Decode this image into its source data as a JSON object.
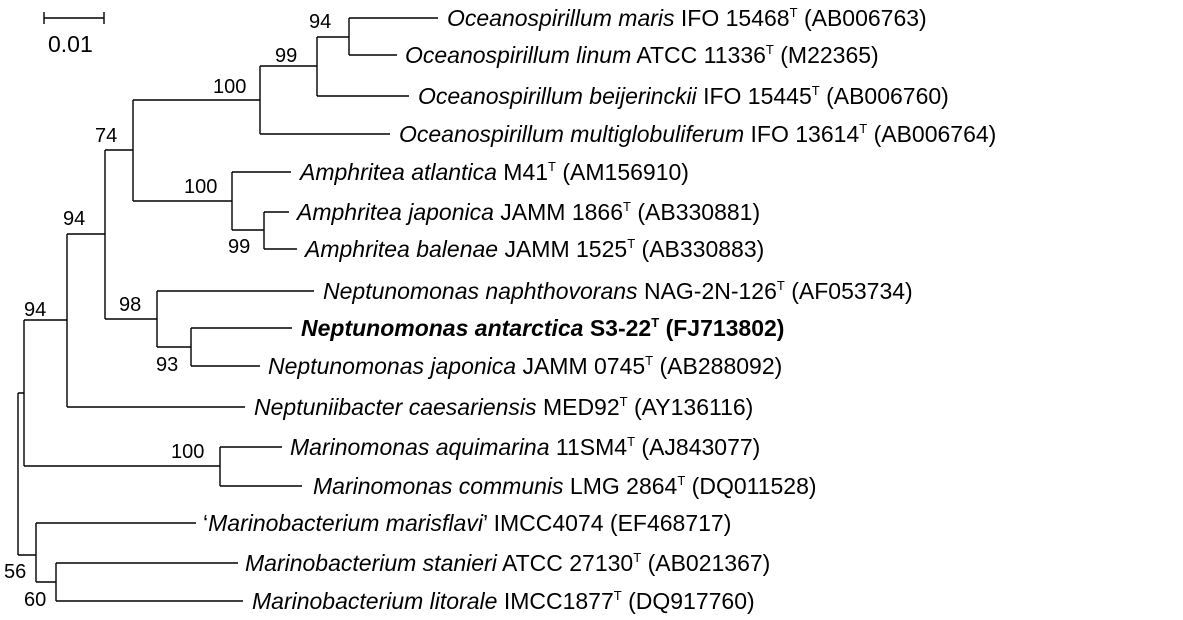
{
  "scale_bar": {
    "label": "0.01"
  },
  "taxa": [
    {
      "id": "t1",
      "prefix": "",
      "species": "Oceanospirillum maris",
      "strain": "IFO 15468",
      "type_strain": true,
      "accession": "(AB006763)",
      "bold": false
    },
    {
      "id": "t2",
      "prefix": "",
      "species": "Oceanospirillum linum",
      "strain": "ATCC 11336",
      "type_strain": true,
      "accession": "(M22365)",
      "bold": false
    },
    {
      "id": "t3",
      "prefix": "",
      "species": "Oceanospirillum beijerinckii",
      "strain": "IFO 15445",
      "type_strain": true,
      "accession": "(AB006760)",
      "bold": false
    },
    {
      "id": "t4",
      "prefix": "",
      "species": "Oceanospirillum multiglobuliferum",
      "strain": "IFO 13614",
      "type_strain": true,
      "accession": "(AB006764)",
      "bold": false
    },
    {
      "id": "t5",
      "prefix": "",
      "species": "Amphritea atlantica",
      "strain": "M41",
      "type_strain": true,
      "accession": "(AM156910)",
      "bold": false
    },
    {
      "id": "t6",
      "prefix": "",
      "species": "Amphritea japonica",
      "strain": "JAMM 1866",
      "type_strain": true,
      "accession": "(AB330881)",
      "bold": false
    },
    {
      "id": "t7",
      "prefix": "",
      "species": "Amphritea balenae",
      "strain": "JAMM 1525",
      "type_strain": true,
      "accession": "(AB330883)",
      "bold": false
    },
    {
      "id": "t8",
      "prefix": "",
      "species": "Neptunomonas naphthovorans",
      "strain": "NAG-2N-126",
      "type_strain": true,
      "accession": "(AF053734)",
      "bold": false
    },
    {
      "id": "t9",
      "prefix": "",
      "species": "Neptunomonas antarctica",
      "strain": "S3-22",
      "type_strain": true,
      "accession": "(FJ713802)",
      "bold": true
    },
    {
      "id": "t10",
      "prefix": "",
      "species": "Neptunomonas japonica",
      "strain": "JAMM 0745",
      "type_strain": true,
      "accession": "(AB288092)",
      "bold": false
    },
    {
      "id": "t11",
      "prefix": "",
      "species": "Neptuniibacter caesariensis",
      "strain": "MED92",
      "type_strain": true,
      "accession": "(AY136116)",
      "bold": false
    },
    {
      "id": "t12",
      "prefix": "",
      "species": "Marinomonas aquimarina",
      "strain": "11SM4",
      "type_strain": true,
      "accession": "(AJ843077)",
      "bold": false
    },
    {
      "id": "t13",
      "prefix": "",
      "species": "Marinomonas communis",
      "strain": "LMG 2864",
      "type_strain": true,
      "accession": "(DQ011528)",
      "bold": false
    },
    {
      "id": "t14",
      "prefix": "‘",
      "species": "Marinobacterium marisflavi",
      "suffix": "’",
      "strain": "IMCC4074",
      "type_strain": false,
      "accession": "(EF468717)",
      "bold": false
    },
    {
      "id": "t15",
      "prefix": "",
      "species": "Marinobacterium stanieri",
      "strain": "ATCC 27130",
      "type_strain": true,
      "accession": "(AB021367)",
      "bold": false
    },
    {
      "id": "t16",
      "prefix": "",
      "species": "Marinobacterium litorale",
      "strain": "IMCC1877",
      "type_strain": true,
      "accession": "(DQ917760)",
      "bold": false
    }
  ],
  "type_strain_mark": "T",
  "bootstrap": [
    {
      "node": "maris-linum",
      "value": "94"
    },
    {
      "node": "oceanospirillum-core",
      "value": "99"
    },
    {
      "node": "oceanospirillum-all",
      "value": "100"
    },
    {
      "node": "oceano-amphritea",
      "value": "74"
    },
    {
      "node": "amphritea",
      "value": "100"
    },
    {
      "node": "amphritea-japonica-balenae",
      "value": "99"
    },
    {
      "node": "neptunomonas",
      "value": "98"
    },
    {
      "node": "neptunomonas-antarctica-japonica",
      "value": "93"
    },
    {
      "node": "oceanospirillaceae-inner",
      "value": "94"
    },
    {
      "node": "oceanospirillaceae-outer",
      "value": "94"
    },
    {
      "node": "marinomonas",
      "value": "100"
    },
    {
      "node": "marinobacterium",
      "value": "56"
    },
    {
      "node": "marinobacterium-stanieri-litorale",
      "value": "60"
    }
  ]
}
